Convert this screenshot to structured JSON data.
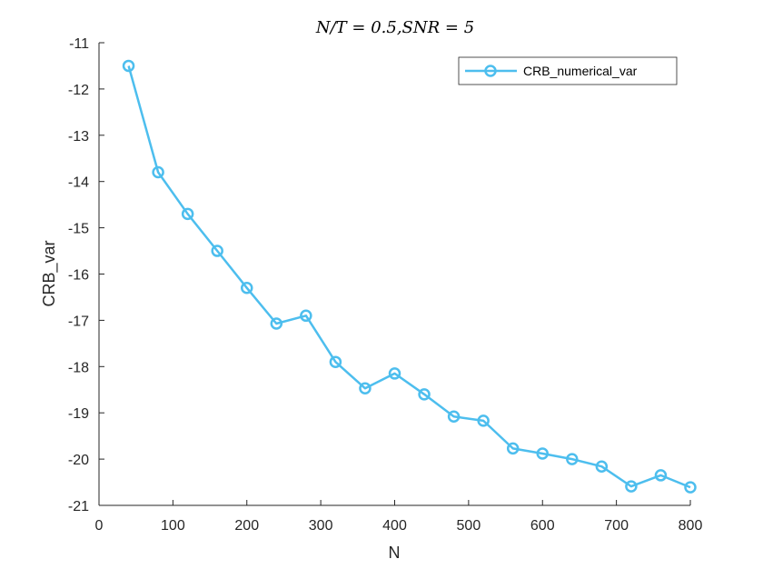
{
  "chart_data": {
    "type": "line",
    "title": "N/T = 0.5,SNR = 5",
    "xlabel": "N",
    "ylabel": "CRB_var",
    "xlim": [
      0,
      800
    ],
    "ylim": [
      -21,
      -11
    ],
    "xticks": [
      0,
      100,
      200,
      300,
      400,
      500,
      600,
      700,
      800
    ],
    "yticks": [
      -11,
      -12,
      -13,
      -14,
      -15,
      -16,
      -17,
      -18,
      -19,
      -20,
      -21
    ],
    "grid": false,
    "legend_position": "top-right",
    "series": [
      {
        "name": "CRB_numerical_var",
        "color": "#4DBEEE",
        "marker": "circle",
        "x": [
          40,
          80,
          120,
          160,
          200,
          240,
          280,
          320,
          360,
          400,
          440,
          480,
          520,
          560,
          600,
          640,
          680,
          720,
          760,
          800
        ],
        "y": [
          -11.5,
          -13.8,
          -14.7,
          -15.5,
          -16.3,
          -17.07,
          -16.9,
          -17.9,
          -18.47,
          -18.15,
          -18.6,
          -19.08,
          -19.17,
          -19.77,
          -19.88,
          -20.0,
          -20.16,
          -20.59,
          -20.35,
          -20.61
        ]
      }
    ]
  }
}
